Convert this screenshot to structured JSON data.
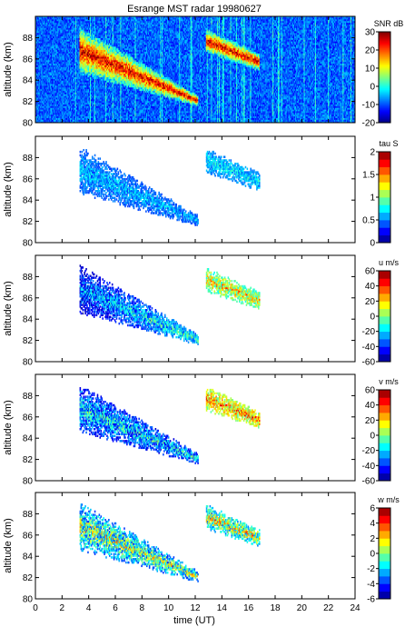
{
  "chart_data": {
    "type": "heatmap",
    "title": "Esrange MST radar 19980627",
    "x": {
      "label": "time (UT)",
      "ticks": [
        0,
        2,
        4,
        6,
        8,
        10,
        12,
        14,
        16,
        18,
        20,
        22,
        24
      ],
      "tick_labels": [
        "0",
        "2",
        "4",
        "6",
        "8",
        "10",
        "12",
        "14",
        "16",
        "18",
        "20",
        "22",
        "24"
      ],
      "range": [
        0,
        24
      ]
    },
    "y": {
      "label": "altitude (km)",
      "ticks": [
        80,
        82,
        84,
        86,
        88
      ],
      "tick_labels": [
        "80",
        "82",
        "84",
        "86",
        "88"
      ],
      "range": [
        80,
        90
      ]
    },
    "colormap": "jet",
    "panels": [
      {
        "variable": "SNR",
        "units_label": "SNR dB",
        "range": [
          -20,
          30
        ],
        "colorbar_ticks": [
          -20,
          -10,
          0,
          10,
          20,
          30
        ],
        "colorbar_tick_labels": [
          "-20",
          "-10",
          "0",
          "10",
          "20",
          "30"
        ],
        "coverage": "full",
        "background": "#0a1fd0"
      },
      {
        "variable": "tau",
        "units_label": "tau S",
        "range": [
          0,
          2
        ],
        "colorbar_ticks": [
          0,
          0.5,
          1,
          1.5,
          2
        ],
        "colorbar_tick_labels": [
          "0",
          "0.5",
          "1",
          "1.5",
          "2"
        ],
        "coverage": "echo",
        "background": "#ffffff"
      },
      {
        "variable": "u",
        "units_label": "u m/s",
        "range": [
          -60,
          60
        ],
        "colorbar_ticks": [
          -60,
          -40,
          -20,
          0,
          20,
          40,
          60
        ],
        "colorbar_tick_labels": [
          "-60",
          "-40",
          "-20",
          "0",
          "20",
          "40",
          "60"
        ],
        "coverage": "echo",
        "background": "#ffffff"
      },
      {
        "variable": "v",
        "units_label": "v m/s",
        "range": [
          -60,
          60
        ],
        "colorbar_ticks": [
          -60,
          -40,
          -20,
          0,
          20,
          40,
          60
        ],
        "colorbar_tick_labels": [
          "-60",
          "-40",
          "-20",
          "0",
          "20",
          "40",
          "60"
        ],
        "coverage": "echo",
        "background": "#ffffff"
      },
      {
        "variable": "w",
        "units_label": "w m/s",
        "range": [
          -6,
          6
        ],
        "colorbar_ticks": [
          -6,
          -4,
          -2,
          0,
          2,
          4,
          6
        ],
        "colorbar_tick_labels": [
          "-6",
          "-4",
          "-2",
          "0",
          "2",
          "4",
          "6"
        ],
        "coverage": "echo",
        "background": "#ffffff"
      }
    ],
    "echo_regions": [
      {
        "name": "main layer",
        "time_range": [
          3.3,
          12.2
        ],
        "altitude_start": [
          84.5,
          89.0
        ],
        "altitude_end": [
          81.5,
          82.5
        ]
      },
      {
        "name": "secondary layer",
        "time_range": [
          12.8,
          16.8
        ],
        "altitude_start": [
          86.5,
          88.8
        ],
        "altitude_end": [
          84.8,
          86.5
        ]
      }
    ]
  }
}
